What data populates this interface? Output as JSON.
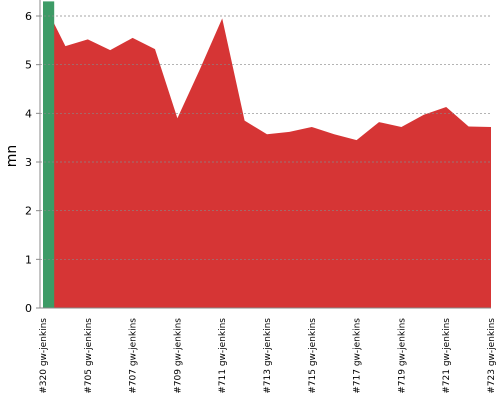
{
  "chart_data": {
    "type": "area",
    "y_label": "mn",
    "categories": [
      "#320 gw-jenkins",
      null,
      "#705 gw-jenkins",
      null,
      "#707 gw-jenkins",
      null,
      "#709 gw-jenkins",
      null,
      "#711 gw-jenkins",
      null,
      "#713 gw-jenkins",
      null,
      "#715 gw-jenkins",
      null,
      "#717 gw-jenkins",
      null,
      "#719 gw-jenkins",
      null,
      "#721 gw-jenkins",
      null,
      "#723 gw-jenkins"
    ],
    "series": [
      {
        "color": "#d63535",
        "values": [
          6.3,
          5.38,
          5.52,
          5.3,
          5.55,
          5.32,
          3.9,
          4.9,
          5.95,
          3.85,
          3.57,
          3.62,
          3.72,
          3.57,
          3.45,
          3.82,
          3.72,
          3.97,
          4.13,
          3.73,
          3.72
        ]
      },
      {
        "color": "#3d9b66",
        "values": [
          6.3,
          null,
          null,
          null,
          null,
          null,
          null,
          null,
          null,
          null,
          null,
          null,
          null,
          null,
          null,
          null,
          null,
          null,
          null,
          null,
          null
        ]
      }
    ],
    "ylim": [
      0,
      6.3
    ],
    "yticks": [
      0,
      1,
      2,
      3,
      4,
      5,
      6
    ],
    "grid": true
  }
}
